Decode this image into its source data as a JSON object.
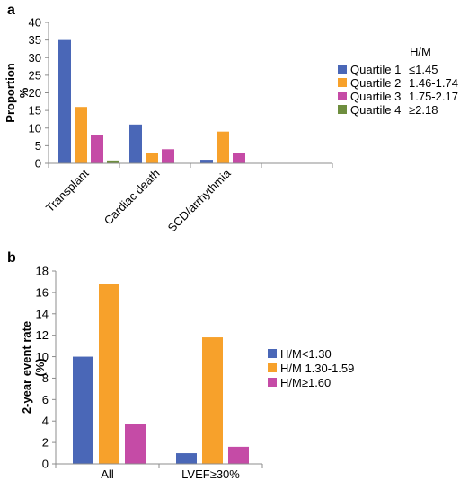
{
  "chart_data": [
    {
      "panel": "a",
      "type": "bar",
      "ylabel": "Proportion %",
      "ylim": [
        0,
        40
      ],
      "yticks": [
        0,
        5,
        10,
        15,
        20,
        25,
        30,
        35,
        40
      ],
      "categories": [
        "Transplant",
        "Cardiac death",
        "SCD/arrhythmia",
        ""
      ],
      "legend_title": "H/M",
      "legend_position": "right",
      "series": [
        {
          "name": "Quartile 1",
          "range": "≤1.45",
          "color": "#4a67b7",
          "values": [
            35,
            11,
            1,
            0
          ]
        },
        {
          "name": "Quartile 2",
          "range": "1.46-1.74",
          "color": "#f7a12b",
          "values": [
            16,
            3,
            9,
            0
          ]
        },
        {
          "name": "Quartile 3",
          "range": "1.75-2.17",
          "color": "#c54ba6",
          "values": [
            8,
            4,
            3,
            0
          ]
        },
        {
          "name": "Quartile 4",
          "range": "≥2.18",
          "color": "#6e8e3e",
          "values": [
            0.8,
            0,
            0,
            0
          ]
        }
      ]
    },
    {
      "panel": "b",
      "type": "bar",
      "ylabel": "2-year event rate (%)",
      "ylim": [
        0,
        18
      ],
      "yticks": [
        0,
        2,
        4,
        6,
        8,
        10,
        12,
        14,
        16,
        18
      ],
      "categories": [
        "All",
        "LVEF≥30%"
      ],
      "legend_position": "right",
      "series": [
        {
          "name": "H/M<1.30",
          "color": "#4a67b7",
          "values": [
            10,
            1
          ]
        },
        {
          "name": "H/M 1.30-1.59",
          "color": "#f7a12b",
          "values": [
            16.8,
            11.8
          ]
        },
        {
          "name": "H/M≥1.60",
          "color": "#c54ba6",
          "values": [
            3.7,
            1.6
          ]
        }
      ]
    }
  ]
}
